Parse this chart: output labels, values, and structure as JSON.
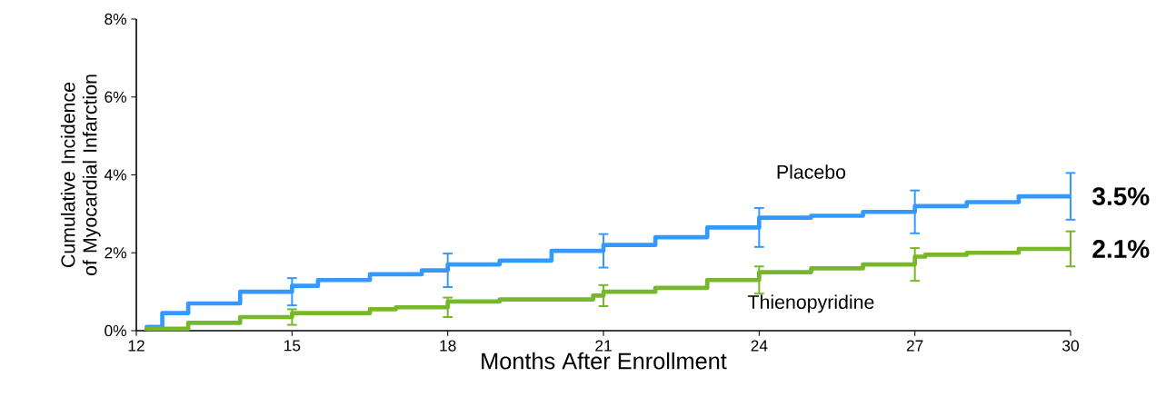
{
  "chart_data": {
    "type": "step",
    "xlabel": "Months After Enrollment",
    "ylabel": "Cumulative Incidence of Myocardial Infarction",
    "xlim": [
      12,
      30
    ],
    "ylim": [
      0,
      8
    ],
    "xticks": [
      12,
      15,
      18,
      21,
      24,
      27,
      30
    ],
    "yticks": [
      {
        "value": 0,
        "label": "0%"
      },
      {
        "value": 2,
        "label": "2%"
      },
      {
        "value": 4,
        "label": "4%"
      },
      {
        "value": 6,
        "label": "6%"
      },
      {
        "value": 8,
        "label": "8%"
      }
    ],
    "marker": "none",
    "line_style": "solid",
    "series": [
      {
        "name": "Placebo",
        "color": "#3399ff",
        "x": [
          12.2,
          12.5,
          13,
          14,
          15,
          15.5,
          16.5,
          17.5,
          18,
          19,
          20,
          21,
          22,
          23,
          24,
          25,
          26,
          27,
          28,
          29,
          30
        ],
        "values": [
          0,
          0.1,
          0.45,
          0.7,
          1.0,
          1.15,
          1.3,
          1.45,
          1.55,
          1.7,
          1.8,
          2.05,
          2.2,
          2.4,
          2.65,
          2.9,
          2.95,
          3.05,
          3.2,
          3.3,
          3.45
        ],
        "errors": [
          null,
          null,
          null,
          null,
          0.35,
          null,
          null,
          null,
          0.43,
          null,
          null,
          0.43,
          null,
          null,
          0.5,
          null,
          null,
          0.55,
          null,
          null,
          0.6
        ]
      },
      {
        "name": "Thienopyridine",
        "color": "#77b82a",
        "x": [
          12.2,
          13,
          14,
          15,
          15.5,
          16.5,
          17,
          18,
          19,
          20.8,
          21,
          22,
          23,
          24,
          25,
          26,
          27,
          27.2,
          28,
          29,
          30
        ],
        "values": [
          0,
          0.05,
          0.2,
          0.35,
          0.45,
          0.45,
          0.55,
          0.6,
          0.75,
          0.8,
          0.9,
          1.0,
          1.1,
          1.3,
          1.5,
          1.6,
          1.7,
          1.9,
          1.95,
          2.0,
          2.1
        ],
        "errors": [
          null,
          null,
          null,
          0.2,
          null,
          null,
          null,
          0.25,
          null,
          null,
          0.27,
          null,
          null,
          0.35,
          null,
          null,
          0.42,
          null,
          null,
          null,
          0.45
        ]
      }
    ],
    "annotations": [
      {
        "text": "3.5%",
        "x": 30,
        "y": 3.45
      },
      {
        "text": "2.1%",
        "x": 30,
        "y": 2.1
      }
    ]
  }
}
